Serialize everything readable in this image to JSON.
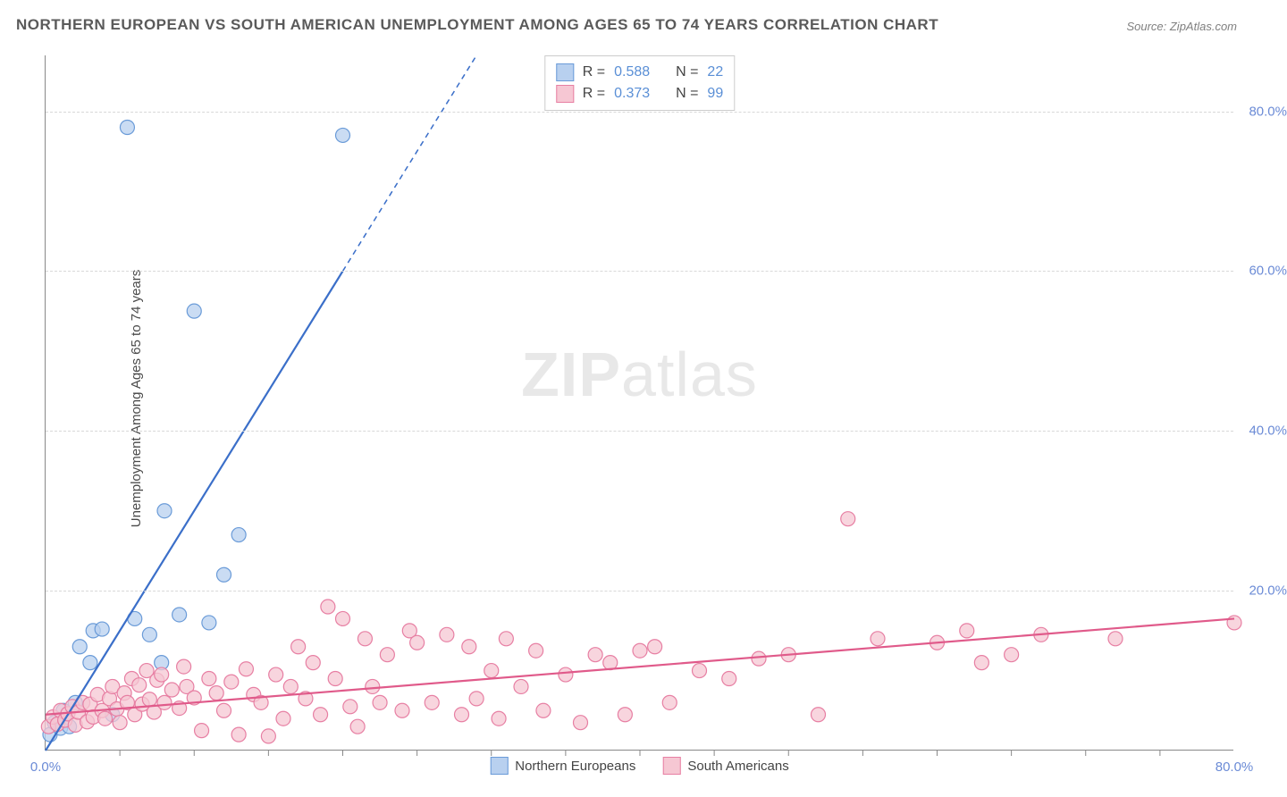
{
  "title": "NORTHERN EUROPEAN VS SOUTH AMERICAN UNEMPLOYMENT AMONG AGES 65 TO 74 YEARS CORRELATION CHART",
  "source": "Source: ZipAtlas.com",
  "ylabel": "Unemployment Among Ages 65 to 74 years",
  "watermark_bold": "ZIP",
  "watermark_light": "atlas",
  "chart": {
    "type": "scatter",
    "xlim": [
      0,
      80
    ],
    "ylim": [
      0,
      87
    ],
    "x_ticks": [
      {
        "v": 0,
        "label": "0.0%"
      },
      {
        "v": 80,
        "label": "80.0%"
      }
    ],
    "y_ticks": [
      {
        "v": 20,
        "label": "20.0%"
      },
      {
        "v": 40,
        "label": "40.0%"
      },
      {
        "v": 60,
        "label": "60.0%"
      },
      {
        "v": 80,
        "label": "80.0%"
      }
    ],
    "x_minor_step": 5,
    "grid_color": "#d8d8d8",
    "background_color": "#ffffff",
    "axis_color": "#888888",
    "tick_label_color": "#6b8bd6",
    "tick_label_fontsize": 15,
    "series": [
      {
        "name": "Northern Europeans",
        "marker_fill": "#b8d0ef",
        "marker_stroke": "#6a9bd8",
        "marker_radius": 8,
        "marker_opacity": 0.75,
        "line_color": "#3b6fc9",
        "line_width": 2.2,
        "r_value": "0.588",
        "n_value": "22",
        "trend": {
          "x1": 0,
          "y1": 0,
          "x2": 20,
          "y2": 60,
          "dash_from_x": 20,
          "dash_to_x": 29,
          "dash_to_y": 87
        },
        "points": [
          [
            0.3,
            2.0
          ],
          [
            0.6,
            3.5
          ],
          [
            1.0,
            2.8
          ],
          [
            1.2,
            5.0
          ],
          [
            1.6,
            3.0
          ],
          [
            2.0,
            6.0
          ],
          [
            2.3,
            13.0
          ],
          [
            3.0,
            11.0
          ],
          [
            3.2,
            15.0
          ],
          [
            3.8,
            15.2
          ],
          [
            4.5,
            4.5
          ],
          [
            5.5,
            78.0
          ],
          [
            6.0,
            16.5
          ],
          [
            7.0,
            14.5
          ],
          [
            7.8,
            11.0
          ],
          [
            8.0,
            30.0
          ],
          [
            9.0,
            17.0
          ],
          [
            10.0,
            55.0
          ],
          [
            11.0,
            16.0
          ],
          [
            12.0,
            22.0
          ],
          [
            13.0,
            27.0
          ],
          [
            20.0,
            77.0
          ]
        ]
      },
      {
        "name": "South Americans",
        "marker_fill": "#f6c7d3",
        "marker_stroke": "#e77fa3",
        "marker_radius": 8,
        "marker_opacity": 0.75,
        "line_color": "#e05a8a",
        "line_width": 2.2,
        "r_value": "0.373",
        "n_value": "99",
        "trend": {
          "x1": 0,
          "y1": 4.5,
          "x2": 80,
          "y2": 16.5
        },
        "points": [
          [
            0.2,
            3.0
          ],
          [
            0.5,
            4.2
          ],
          [
            0.8,
            3.3
          ],
          [
            1.0,
            5.0
          ],
          [
            1.3,
            3.8
          ],
          [
            1.5,
            4.6
          ],
          [
            1.8,
            5.5
          ],
          [
            2.0,
            3.2
          ],
          [
            2.2,
            4.8
          ],
          [
            2.5,
            6.0
          ],
          [
            2.8,
            3.6
          ],
          [
            3.0,
            5.8
          ],
          [
            3.2,
            4.2
          ],
          [
            3.5,
            7.0
          ],
          [
            3.8,
            5.0
          ],
          [
            4.0,
            4.0
          ],
          [
            4.3,
            6.5
          ],
          [
            4.5,
            8.0
          ],
          [
            4.8,
            5.2
          ],
          [
            5.0,
            3.5
          ],
          [
            5.3,
            7.2
          ],
          [
            5.5,
            6.0
          ],
          [
            5.8,
            9.0
          ],
          [
            6.0,
            4.5
          ],
          [
            6.3,
            8.2
          ],
          [
            6.5,
            5.8
          ],
          [
            6.8,
            10.0
          ],
          [
            7.0,
            6.4
          ],
          [
            7.3,
            4.8
          ],
          [
            7.5,
            8.8
          ],
          [
            7.8,
            9.5
          ],
          [
            8.0,
            6.0
          ],
          [
            8.5,
            7.6
          ],
          [
            9.0,
            5.3
          ],
          [
            9.3,
            10.5
          ],
          [
            9.5,
            8.0
          ],
          [
            10.0,
            6.6
          ],
          [
            10.5,
            2.5
          ],
          [
            11.0,
            9.0
          ],
          [
            11.5,
            7.2
          ],
          [
            12.0,
            5.0
          ],
          [
            12.5,
            8.6
          ],
          [
            13.0,
            2.0
          ],
          [
            13.5,
            10.2
          ],
          [
            14.0,
            7.0
          ],
          [
            14.5,
            6.0
          ],
          [
            15.0,
            1.8
          ],
          [
            15.5,
            9.5
          ],
          [
            16.0,
            4.0
          ],
          [
            16.5,
            8.0
          ],
          [
            17.0,
            13.0
          ],
          [
            17.5,
            6.5
          ],
          [
            18.0,
            11.0
          ],
          [
            18.5,
            4.5
          ],
          [
            19.0,
            18.0
          ],
          [
            19.5,
            9.0
          ],
          [
            20.0,
            16.5
          ],
          [
            20.5,
            5.5
          ],
          [
            21.0,
            3.0
          ],
          [
            21.5,
            14.0
          ],
          [
            22.0,
            8.0
          ],
          [
            22.5,
            6.0
          ],
          [
            23.0,
            12.0
          ],
          [
            24.0,
            5.0
          ],
          [
            24.5,
            15.0
          ],
          [
            25.0,
            13.5
          ],
          [
            26.0,
            6.0
          ],
          [
            27.0,
            14.5
          ],
          [
            28.0,
            4.5
          ],
          [
            28.5,
            13.0
          ],
          [
            29.0,
            6.5
          ],
          [
            30.0,
            10.0
          ],
          [
            30.5,
            4.0
          ],
          [
            31.0,
            14.0
          ],
          [
            32.0,
            8.0
          ],
          [
            33.0,
            12.5
          ],
          [
            33.5,
            5.0
          ],
          [
            35.0,
            9.5
          ],
          [
            36.0,
            3.5
          ],
          [
            37.0,
            12.0
          ],
          [
            38.0,
            11.0
          ],
          [
            39.0,
            4.5
          ],
          [
            40.0,
            12.5
          ],
          [
            41.0,
            13.0
          ],
          [
            42.0,
            6.0
          ],
          [
            44.0,
            10.0
          ],
          [
            46.0,
            9.0
          ],
          [
            48.0,
            11.5
          ],
          [
            50.0,
            12.0
          ],
          [
            52.0,
            4.5
          ],
          [
            54.0,
            29.0
          ],
          [
            56.0,
            14.0
          ],
          [
            60.0,
            13.5
          ],
          [
            62.0,
            15.0
          ],
          [
            63.0,
            11.0
          ],
          [
            65.0,
            12.0
          ],
          [
            67.0,
            14.5
          ],
          [
            72.0,
            14.0
          ],
          [
            80.0,
            16.0
          ]
        ]
      }
    ],
    "legend_top": {
      "r_label": "R =",
      "n_label": "N ="
    },
    "legend_bottom_fontsize": 15
  }
}
